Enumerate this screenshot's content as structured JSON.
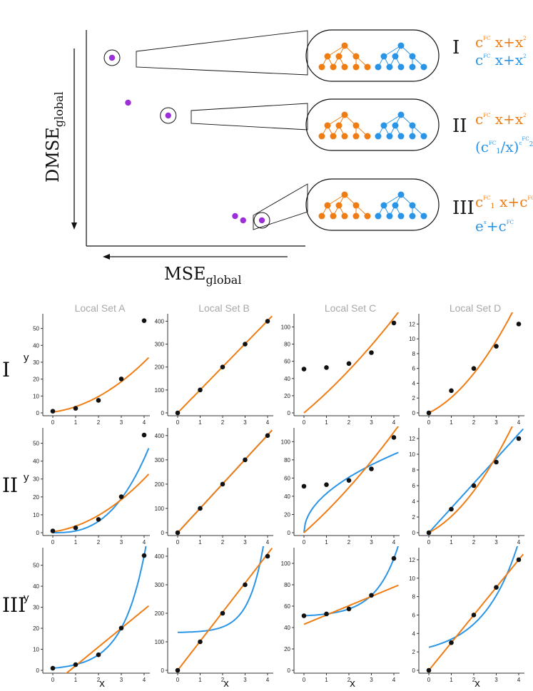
{
  "colors": {
    "orange": "#ef7d14",
    "blue": "#2a95e6",
    "purple": "#9b30d9",
    "gray": "#a8a8a8",
    "black": "#111111"
  },
  "top_panel": {
    "xlabel_main": "MSE",
    "xlabel_sub": "global",
    "ylabel_main": "DMSE",
    "ylabel_sub": "global",
    "pareto_points": [
      {
        "mse": 7.2,
        "dmse": 8.6,
        "highlighted": true,
        "model": "I"
      },
      {
        "mse": 6.6,
        "dmse": 6.5,
        "highlighted": false
      },
      {
        "mse": 5.1,
        "dmse": 5.9,
        "highlighted": true,
        "model": "II"
      },
      {
        "mse": 2.6,
        "dmse": 1.2,
        "highlighted": false
      },
      {
        "mse": 2.3,
        "dmse": 1.0,
        "highlighted": false
      },
      {
        "mse": 1.6,
        "dmse": 1.0,
        "highlighted": true,
        "model": "III"
      }
    ],
    "models": [
      {
        "label": "I",
        "orange_expr": [
          {
            "t": "c"
          },
          {
            "t": "FC",
            "sup": true
          },
          {
            "t": " x+x"
          },
          {
            "t": "2",
            "sup": true
          }
        ],
        "blue_expr": [
          {
            "t": "c"
          },
          {
            "t": "FC",
            "sup": true
          },
          {
            "t": " x+x"
          },
          {
            "t": "2",
            "sup": true
          }
        ]
      },
      {
        "label": "II",
        "orange_expr": [
          {
            "t": "c"
          },
          {
            "t": "FC",
            "sup": true
          },
          {
            "t": " x+x"
          },
          {
            "t": "2",
            "sup": true
          }
        ],
        "blue_expr": [
          {
            "t": "(c"
          },
          {
            "t": "FC",
            "sup": true
          },
          {
            "t": "1",
            "sub": true
          },
          {
            "t": "/x)"
          },
          {
            "t": "c",
            "sup": true
          },
          {
            "t": "FC",
            "sup2": true
          },
          {
            "t": "2",
            "sub2": true
          }
        ]
      },
      {
        "label": "III",
        "orange_expr": [
          {
            "t": "c"
          },
          {
            "t": "FC",
            "sup": true
          },
          {
            "t": "1",
            "sub": true
          },
          {
            "t": " x+c"
          },
          {
            "t": "FC",
            "sup": true
          },
          {
            "t": "2",
            "sub": true
          }
        ],
        "blue_expr": [
          {
            "t": "e"
          },
          {
            "t": "x",
            "sup": true
          },
          {
            "t": "+c"
          },
          {
            "t": "FC",
            "sup": true
          }
        ]
      }
    ]
  },
  "grid": {
    "columns": [
      "Local Set A",
      "Local Set B",
      "Local Set C",
      "Local Set D"
    ],
    "rows": [
      "I",
      "II",
      "III"
    ],
    "x_label": "x",
    "y_label": "y"
  },
  "chart_data": [
    {
      "type": "scatter",
      "panel": "A-I",
      "x": [
        0,
        1,
        2,
        3,
        4
      ],
      "y": [
        1,
        2.7,
        7.4,
        20.1,
        54.6
      ],
      "ylim": [
        0,
        57
      ],
      "yticks": [
        0,
        10,
        20,
        30,
        40,
        50
      ],
      "fits": [
        {
          "name": "orange",
          "expr": "c x + x^2",
          "values": [
            [
              0,
              0.5
            ],
            [
              4,
              30
            ]
          ]
        }
      ]
    },
    {
      "type": "scatter",
      "panel": "B-I",
      "x": [
        0,
        1,
        2,
        3,
        4
      ],
      "y": [
        0,
        100,
        200,
        300,
        400
      ],
      "ylim": [
        0,
        420
      ],
      "yticks": [
        0,
        100,
        200,
        300,
        400
      ],
      "fits": [
        {
          "name": "orange",
          "values": [
            [
              0,
              0
            ],
            [
              4,
              402
            ]
          ]
        }
      ]
    },
    {
      "type": "scatter",
      "panel": "C-I",
      "x": [
        0,
        1,
        2,
        3,
        4
      ],
      "y": [
        51,
        52.7,
        57.4,
        70.1,
        104.6
      ],
      "ylim": [
        0,
        112
      ],
      "yticks": [
        0,
        20,
        40,
        60,
        80,
        100
      ],
      "fits": [
        {
          "name": "orange",
          "values": [
            [
              0,
              0
            ],
            [
              4,
              110
            ]
          ]
        }
      ]
    },
    {
      "type": "scatter",
      "panel": "D-I",
      "x": [
        0,
        1,
        2,
        3,
        4
      ],
      "y": [
        0,
        3,
        6,
        9,
        12
      ],
      "ylim": [
        0,
        13
      ],
      "yticks": [
        0,
        2,
        4,
        6,
        8,
        10,
        12
      ],
      "fits": [
        {
          "name": "orange",
          "values": [
            [
              0,
              0
            ],
            [
              3.6,
              13
            ]
          ]
        }
      ]
    },
    {
      "type": "scatter",
      "panel": "A-II",
      "x": [
        0,
        1,
        2,
        3,
        4
      ],
      "y": [
        1,
        2.7,
        7.4,
        20.1,
        54.6
      ],
      "ylim": [
        0,
        57
      ],
      "yticks": [
        0,
        10,
        20,
        30,
        40,
        50
      ],
      "fits": [
        {
          "name": "orange",
          "values": [
            [
              0,
              0.5
            ],
            [
              4,
              30
            ]
          ]
        },
        {
          "name": "blue",
          "values": [
            [
              0,
              0
            ],
            [
              4,
              42
            ]
          ]
        }
      ]
    },
    {
      "type": "scatter",
      "panel": "B-II",
      "x": [
        0,
        1,
        2,
        3,
        4
      ],
      "y": [
        0,
        100,
        200,
        300,
        400
      ],
      "ylim": [
        0,
        420
      ],
      "yticks": [
        0,
        100,
        200,
        300,
        400
      ],
      "fits": [
        {
          "name": "orange",
          "values": [
            [
              0,
              0
            ],
            [
              4,
              402
            ]
          ]
        },
        {
          "name": "blue",
          "values": [
            [
              0,
              0
            ],
            [
              4,
              402
            ]
          ]
        }
      ]
    },
    {
      "type": "scatter",
      "panel": "C-II",
      "x": [
        0,
        1,
        2,
        3,
        4
      ],
      "y": [
        51,
        52.7,
        57.4,
        70.1,
        104.6
      ],
      "ylim": [
        0,
        112
      ],
      "yticks": [
        0,
        20,
        40,
        60,
        80,
        100
      ],
      "fits": [
        {
          "name": "orange",
          "values": [
            [
              0,
              0
            ],
            [
              4,
              110
            ]
          ]
        },
        {
          "name": "blue",
          "values": [
            [
              0,
              0
            ],
            [
              4,
              86
            ]
          ]
        }
      ]
    },
    {
      "type": "scatter",
      "panel": "D-II",
      "x": [
        0,
        1,
        2,
        3,
        4
      ],
      "y": [
        0,
        3,
        6,
        9,
        12
      ],
      "ylim": [
        0,
        13
      ],
      "yticks": [
        0,
        2,
        4,
        6,
        8,
        10,
        12
      ],
      "fits": [
        {
          "name": "orange",
          "values": [
            [
              0,
              0
            ],
            [
              3.6,
              13
            ]
          ]
        },
        {
          "name": "blue",
          "values": [
            [
              0,
              0
            ],
            [
              4,
              12.6
            ]
          ]
        }
      ]
    },
    {
      "type": "scatter",
      "panel": "A-III",
      "x": [
        0,
        1,
        2,
        3,
        4
      ],
      "y": [
        1,
        2.7,
        7.4,
        20.1,
        54.6
      ],
      "ylim": [
        0,
        57
      ],
      "yticks": [
        0,
        10,
        20,
        30,
        40,
        50
      ],
      "fits": [
        {
          "name": "orange",
          "values": [
            [
              0.75,
              0
            ],
            [
              4,
              29
            ]
          ]
        },
        {
          "name": "blue",
          "values": [
            [
              0,
              1
            ],
            [
              4,
              54.6
            ]
          ]
        }
      ]
    },
    {
      "type": "scatter",
      "panel": "B-III",
      "x": [
        0,
        1,
        2,
        3,
        4
      ],
      "y": [
        0,
        100,
        200,
        300,
        400
      ],
      "ylim": [
        0,
        420
      ],
      "yticks": [
        0,
        100,
        200,
        300,
        400
      ],
      "fits": [
        {
          "name": "orange",
          "values": [
            [
              0,
              0
            ],
            [
              4,
              410
            ]
          ]
        },
        {
          "name": "blue",
          "values": [
            [
              0,
              132
            ],
            [
              3.8,
              420
            ]
          ]
        }
      ]
    },
    {
      "type": "scatter",
      "panel": "C-III",
      "x": [
        0,
        1,
        2,
        3,
        4
      ],
      "y": [
        51,
        52.7,
        57.4,
        70.1,
        104.6
      ],
      "ylim": [
        0,
        112
      ],
      "yticks": [
        0,
        20,
        40,
        60,
        80,
        100
      ],
      "fits": [
        {
          "name": "orange",
          "values": [
            [
              0,
              43
            ],
            [
              4,
              78
            ]
          ]
        },
        {
          "name": "blue",
          "values": [
            [
              0,
              51
            ],
            [
              4,
              104.6
            ]
          ]
        }
      ]
    },
    {
      "type": "scatter",
      "panel": "D-III",
      "x": [
        0,
        1,
        2,
        3,
        4
      ],
      "y": [
        0,
        3,
        6,
        9,
        12
      ],
      "ylim": [
        0,
        13
      ],
      "yticks": [
        0,
        2,
        4,
        6,
        8,
        10,
        12
      ],
      "fits": [
        {
          "name": "orange",
          "values": [
            [
              0,
              0
            ],
            [
              4,
              12
            ]
          ]
        },
        {
          "name": "blue",
          "values": [
            [
              0,
              2.5
            ],
            [
              3.7,
              13
            ]
          ]
        }
      ]
    }
  ]
}
